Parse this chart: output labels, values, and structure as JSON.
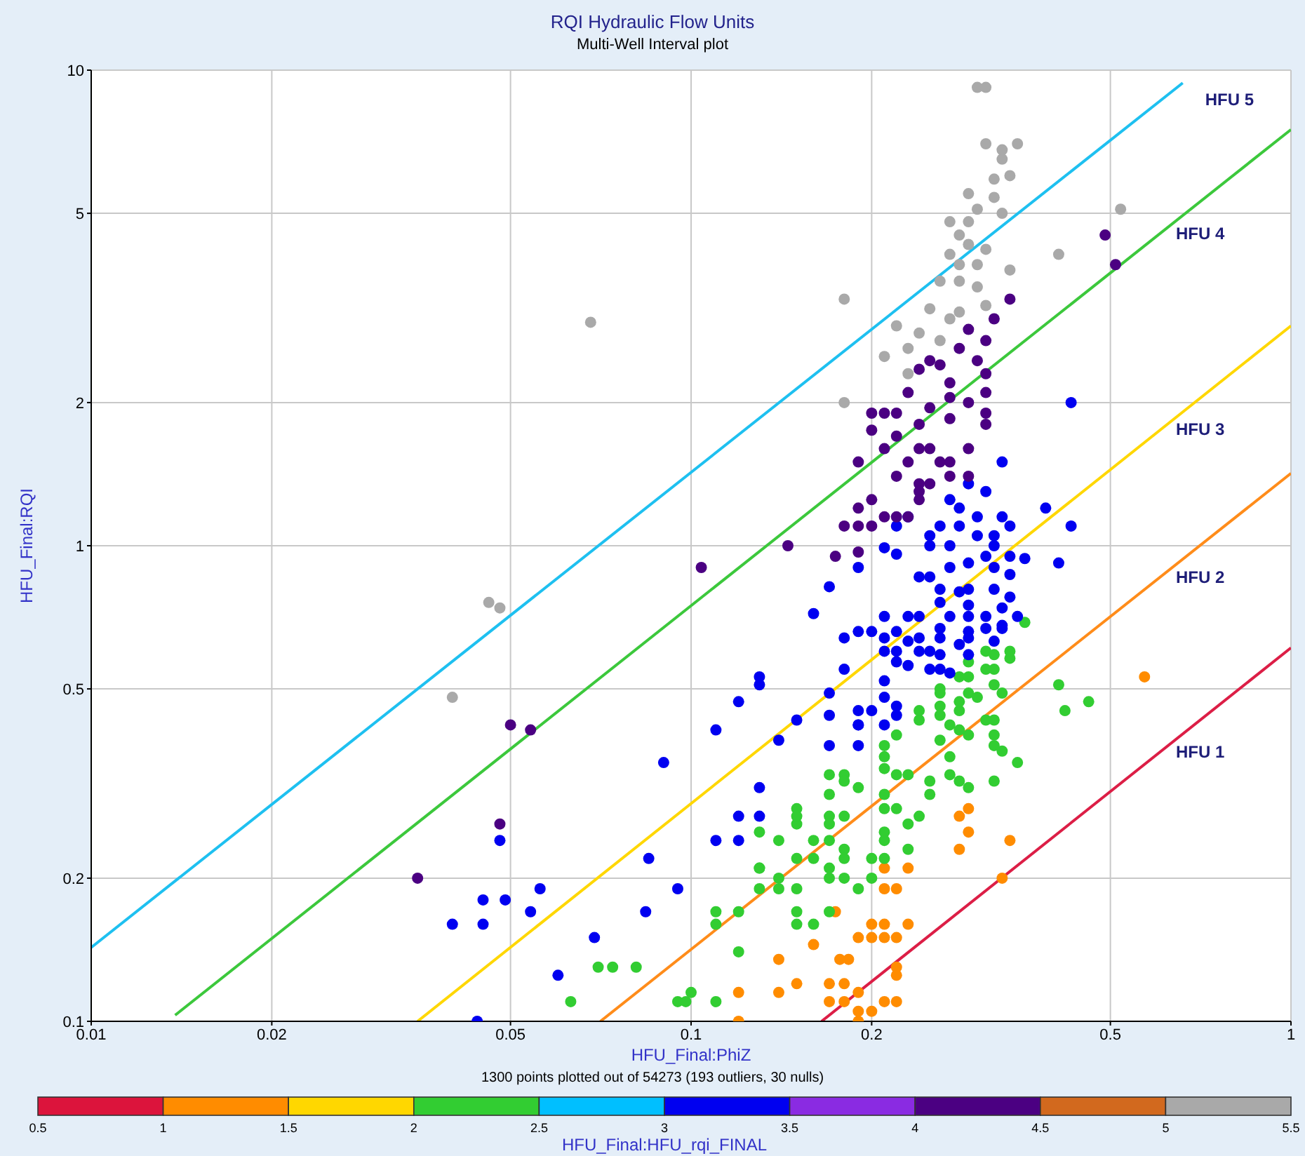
{
  "chart_data": {
    "type": "scatter",
    "title": "RQI Hydraulic Flow Units",
    "subtitle": "Multi-Well Interval plot",
    "xlabel": "HFU_Final:PhiZ",
    "ylabel": "HFU_Final:RQI",
    "clabel": "HFU_Final:HFU_rqi_FINAL",
    "annotations": [
      "1300 points plotted out of 54273 (193 outliers, 30 nulls)"
    ],
    "log": "xy",
    "grid": true,
    "xlim": [
      0.01,
      1
    ],
    "xticks": [
      0.01,
      0.02,
      0.05,
      0.1,
      0.2,
      0.5,
      1
    ],
    "ylim": [
      0.1,
      10
    ],
    "yticks": [
      0.1,
      0.2,
      0.5,
      1,
      2,
      5,
      10
    ],
    "clim": [
      0.5,
      5.5
    ],
    "cticks": [
      0.5,
      1,
      1.5,
      2,
      2.5,
      3,
      3.5,
      4,
      4.5,
      5,
      5.5
    ],
    "colors": [
      "#dc143c",
      "#ff8c00",
      "#ffd700",
      "#32cd32",
      "#00bfff",
      "#0000f0",
      "#8a2be2",
      "#4b0082",
      "#d2691e",
      "#a9a9a9"
    ],
    "series": [
      {
        "marker": "circle",
        "x": [
          0.28,
          0.29,
          0.29,
          0.28,
          0.34,
          0.33,
          0.21,
          0.23,
          0.21,
          0.22,
          0.174,
          0.2,
          0.21,
          0.23,
          0.19,
          0.2,
          0.21,
          0.22,
          0.16,
          0.14,
          0.177,
          0.183,
          0.22,
          0.22,
          0.17,
          0.18,
          0.19,
          0.15,
          0.14,
          0.12,
          0.22,
          0.21,
          0.17,
          0.18,
          0.2,
          0.19,
          0.12,
          0.19,
          0.57
        ],
        "values": [
          0.27,
          0.28,
          0.25,
          0.23,
          0.24,
          0.2,
          0.21,
          0.21,
          0.19,
          0.19,
          0.17,
          0.16,
          0.16,
          0.16,
          0.15,
          0.15,
          0.15,
          0.15,
          0.145,
          0.135,
          0.135,
          0.135,
          0.13,
          0.125,
          0.12,
          0.12,
          0.115,
          0.12,
          0.115,
          0.115,
          0.11,
          0.11,
          0.11,
          0.11,
          0.105,
          0.105,
          0.1,
          0.1,
          0.53
        ],
        "cvalues": [
          1.25,
          1.25,
          1.25,
          1.25,
          1.25,
          1.25,
          1.25,
          1.25,
          1.25,
          1.25,
          1.25,
          1.25,
          1.25,
          1.25,
          1.25,
          1.25,
          1.25,
          1.25,
          1.25,
          1.25,
          1.25,
          1.25,
          1.25,
          1.25,
          1.25,
          1.25,
          1.25,
          1.25,
          1.25,
          1.25,
          1.25,
          1.25,
          1.25,
          1.25,
          1.25,
          1.25,
          1.25,
          1.25,
          1.25
        ]
      },
      {
        "marker": "circle",
        "x": [
          0.063,
          0.07,
          0.074,
          0.081,
          0.095,
          0.098,
          0.1,
          0.11,
          0.12,
          0.11,
          0.12,
          0.11,
          0.13,
          0.14,
          0.14,
          0.15,
          0.13,
          0.13,
          0.15,
          0.13,
          0.14,
          0.15,
          0.15,
          0.15,
          0.17,
          0.16,
          0.17,
          0.16,
          0.17,
          0.15,
          0.15,
          0.16,
          0.17,
          0.17,
          0.17,
          0.17,
          0.17,
          0.18,
          0.19,
          0.2,
          0.18,
          0.18,
          0.18,
          0.2,
          0.21,
          0.21,
          0.21,
          0.22,
          0.23,
          0.24,
          0.23,
          0.19,
          0.21,
          0.21,
          0.18,
          0.18,
          0.21,
          0.21,
          0.21,
          0.22,
          0.22,
          0.23,
          0.25,
          0.25,
          0.27,
          0.28,
          0.29,
          0.32,
          0.26,
          0.27,
          0.24,
          0.24,
          0.26,
          0.26,
          0.26,
          0.28,
          0.28,
          0.29,
          0.3,
          0.27,
          0.28,
          0.29,
          0.31,
          0.32,
          0.32,
          0.33,
          0.32,
          0.35,
          0.33,
          0.32,
          0.26,
          0.28,
          0.29,
          0.29,
          0.31,
          0.32,
          0.31,
          0.32,
          0.34,
          0.34,
          0.36,
          0.41,
          0.42,
          0.46
        ],
        "values": [
          0.11,
          0.13,
          0.13,
          0.13,
          0.11,
          0.11,
          0.115,
          0.11,
          0.14,
          0.16,
          0.17,
          0.17,
          0.19,
          0.2,
          0.19,
          0.19,
          0.21,
          0.21,
          0.22,
          0.25,
          0.24,
          0.26,
          0.28,
          0.27,
          0.27,
          0.24,
          0.24,
          0.22,
          0.21,
          0.17,
          0.16,
          0.16,
          0.17,
          0.33,
          0.3,
          0.26,
          0.2,
          0.2,
          0.19,
          0.2,
          0.27,
          0.23,
          0.22,
          0.22,
          0.22,
          0.25,
          0.24,
          0.28,
          0.26,
          0.27,
          0.23,
          0.31,
          0.3,
          0.28,
          0.33,
          0.32,
          0.34,
          0.36,
          0.38,
          0.4,
          0.33,
          0.33,
          0.32,
          0.3,
          0.33,
          0.32,
          0.31,
          0.32,
          0.39,
          0.36,
          0.43,
          0.45,
          0.49,
          0.46,
          0.44,
          0.45,
          0.47,
          0.49,
          0.48,
          0.42,
          0.41,
          0.4,
          0.43,
          0.43,
          0.4,
          0.37,
          0.38,
          0.35,
          0.49,
          0.51,
          0.5,
          0.53,
          0.53,
          0.57,
          0.6,
          0.59,
          0.55,
          0.55,
          0.58,
          0.6,
          0.69,
          0.51,
          0.45,
          0.47
        ],
        "cvalues": [
          2.25,
          2.25,
          2.25,
          2.25,
          2.25,
          2.25,
          2.25,
          2.25,
          2.25,
          2.25,
          2.25,
          2.25,
          2.25,
          2.25,
          2.25,
          2.25,
          2.25,
          2.25,
          2.25,
          2.25,
          2.25,
          2.25,
          2.25,
          2.25,
          2.25,
          2.25,
          2.25,
          2.25,
          2.25,
          2.25,
          2.25,
          2.25,
          2.25,
          2.25,
          2.25,
          2.25,
          2.25,
          2.25,
          2.25,
          2.25,
          2.25,
          2.25,
          2.25,
          2.25,
          2.25,
          2.25,
          2.25,
          2.25,
          2.25,
          2.25,
          2.25,
          2.25,
          2.25,
          2.25,
          2.25,
          2.25,
          2.25,
          2.25,
          2.25,
          2.25,
          2.25,
          2.25,
          2.25,
          2.25,
          2.25,
          2.25,
          2.25,
          2.25,
          2.25,
          2.25,
          2.25,
          2.25,
          2.25,
          2.25,
          2.25,
          2.25,
          2.25,
          2.25,
          2.25,
          2.25,
          2.25,
          2.25,
          2.25,
          2.25,
          2.25,
          2.25,
          2.25,
          2.25,
          2.25,
          2.25,
          2.25,
          2.25,
          2.25,
          2.25,
          2.25,
          2.25,
          2.25,
          2.25,
          2.25,
          2.25,
          2.25,
          2.25,
          2.25,
          2.25
        ]
      },
      {
        "marker": "circle",
        "x": [
          0.17,
          0.16,
          0.13,
          0.13,
          0.12,
          0.17,
          0.17,
          0.15,
          0.11,
          0.14,
          0.17,
          0.09,
          0.13,
          0.12,
          0.13,
          0.11,
          0.12,
          0.085,
          0.048,
          0.095,
          0.084,
          0.069,
          0.06,
          0.044,
          0.045,
          0.04,
          0.045,
          0.049,
          0.054,
          0.056,
          0.18,
          0.19,
          0.2,
          0.21,
          0.23,
          0.21,
          0.21,
          0.22,
          0.21,
          0.22,
          0.18,
          0.19,
          0.19,
          0.19,
          0.2,
          0.21,
          0.22,
          0.21,
          0.22,
          0.19,
          0.24,
          0.25,
          0.25,
          0.26,
          0.28,
          0.29,
          0.29,
          0.27,
          0.35,
          0.33,
          0.43,
          0.33,
          0.29,
          0.31,
          0.39,
          0.43,
          0.27,
          0.28,
          0.3,
          0.33,
          0.23,
          0.22,
          0.25,
          0.26,
          0.28,
          0.3,
          0.32,
          0.34,
          0.21,
          0.22,
          0.25,
          0.27,
          0.31,
          0.32,
          0.34,
          0.36,
          0.41,
          0.19,
          0.24,
          0.25,
          0.27,
          0.29,
          0.32,
          0.34,
          0.26,
          0.28,
          0.29,
          0.32,
          0.34,
          0.26,
          0.29,
          0.33,
          0.24,
          0.27,
          0.29,
          0.31,
          0.22,
          0.26,
          0.29,
          0.31,
          0.33,
          0.23,
          0.26,
          0.32,
          0.24,
          0.23,
          0.26
        ],
        "values": [
          0.82,
          0.72,
          0.53,
          0.51,
          0.47,
          0.49,
          0.44,
          0.43,
          0.41,
          0.39,
          0.38,
          0.35,
          0.31,
          0.27,
          0.27,
          0.24,
          0.24,
          0.22,
          0.24,
          0.19,
          0.17,
          0.15,
          0.125,
          0.1,
          0.18,
          0.16,
          0.16,
          0.18,
          0.17,
          0.19,
          0.64,
          0.66,
          0.66,
          0.71,
          0.71,
          0.64,
          0.6,
          0.57,
          0.52,
          0.6,
          0.55,
          0.42,
          0.42,
          0.45,
          0.45,
          0.48,
          0.46,
          0.42,
          0.44,
          0.38,
          0.64,
          0.6,
          0.55,
          0.59,
          0.62,
          0.64,
          0.59,
          0.54,
          0.71,
          0.67,
          2.0,
          1.5,
          1.35,
          1.3,
          1.2,
          1.1,
          1.25,
          1.2,
          1.15,
          1.15,
          1.15,
          1.1,
          1.05,
          1.1,
          1.1,
          1.05,
          1.05,
          1.1,
          0.99,
          0.96,
          1.0,
          1.0,
          0.95,
          1.0,
          0.95,
          0.94,
          0.92,
          0.9,
          0.86,
          0.86,
          0.9,
          0.92,
          0.9,
          0.87,
          0.81,
          0.8,
          0.81,
          0.81,
          0.78,
          0.76,
          0.75,
          0.74,
          0.71,
          0.71,
          0.71,
          0.71,
          0.66,
          0.67,
          0.66,
          0.67,
          0.68,
          0.63,
          0.64,
          0.63,
          0.6,
          0.56,
          0.55
        ],
        "cvalues": [
          3.25,
          3.25,
          3.25,
          3.25,
          3.25,
          3.25,
          3.25,
          3.25,
          3.25,
          3.25,
          3.25,
          3.25,
          3.25,
          3.25,
          3.25,
          3.25,
          3.25,
          3.25,
          3.25,
          3.25,
          3.25,
          3.25,
          3.25,
          3.25,
          3.25,
          3.25,
          3.25,
          3.25,
          3.25,
          3.25,
          3.25,
          3.25,
          3.25,
          3.25,
          3.25,
          3.25,
          3.25,
          3.25,
          3.25,
          3.25,
          3.25,
          3.25,
          3.25,
          3.25,
          3.25,
          3.25,
          3.25,
          3.25,
          3.25,
          3.25,
          3.25,
          3.25,
          3.25,
          3.25,
          3.25,
          3.25,
          3.25,
          3.25,
          3.25,
          3.25,
          3.25,
          3.25,
          3.25,
          3.25,
          3.25,
          3.25,
          3.25,
          3.25,
          3.25,
          3.25,
          3.25,
          3.25,
          3.25,
          3.25,
          3.25,
          3.25,
          3.25,
          3.25,
          3.25,
          3.25,
          3.25,
          3.25,
          3.25,
          3.25,
          3.25,
          3.25,
          3.25,
          3.25,
          3.25,
          3.25,
          3.25,
          3.25,
          3.25,
          3.25,
          3.25,
          3.25,
          3.25,
          3.25,
          3.25,
          3.25,
          3.25,
          3.25,
          3.25,
          3.25,
          3.25,
          3.25,
          3.25,
          3.25,
          3.25,
          3.25,
          3.25,
          3.25,
          3.25,
          3.25,
          3.25,
          3.25,
          3.25
        ]
      },
      {
        "marker": "circle",
        "x": [
          0.035,
          0.048,
          0.05,
          0.054,
          0.104,
          0.145,
          0.174,
          0.49,
          0.51,
          0.34,
          0.32,
          0.29,
          0.31,
          0.28,
          0.3,
          0.25,
          0.24,
          0.26,
          0.31,
          0.27,
          0.23,
          0.27,
          0.31,
          0.29,
          0.25,
          0.2,
          0.21,
          0.22,
          0.27,
          0.31,
          0.24,
          0.31,
          0.2,
          0.22,
          0.24,
          0.25,
          0.29,
          0.21,
          0.19,
          0.23,
          0.26,
          0.27,
          0.22,
          0.24,
          0.25,
          0.27,
          0.29,
          0.24,
          0.2,
          0.24,
          0.19,
          0.21,
          0.22,
          0.23,
          0.18,
          0.19,
          0.2,
          0.19
        ],
        "values": [
          0.2,
          0.26,
          0.42,
          0.41,
          0.9,
          1.0,
          0.95,
          4.5,
          3.9,
          3.3,
          3.0,
          2.85,
          2.7,
          2.6,
          2.45,
          2.45,
          2.35,
          2.4,
          2.3,
          2.2,
          2.1,
          2.05,
          2.1,
          2.0,
          1.95,
          1.9,
          1.9,
          1.9,
          1.85,
          1.9,
          1.8,
          1.8,
          1.75,
          1.7,
          1.6,
          1.6,
          1.6,
          1.6,
          1.5,
          1.5,
          1.5,
          1.5,
          1.4,
          1.35,
          1.35,
          1.4,
          1.4,
          1.3,
          1.25,
          1.25,
          1.2,
          1.15,
          1.15,
          1.15,
          1.1,
          1.1,
          1.1,
          0.97
        ],
        "cvalues": [
          4.25,
          4.25,
          4.25,
          4.25,
          4.25,
          4.25,
          4.25,
          4.25,
          4.25,
          4.25,
          4.25,
          4.25,
          4.25,
          4.25,
          4.25,
          4.25,
          4.25,
          4.25,
          4.25,
          4.25,
          4.25,
          4.25,
          4.25,
          4.25,
          4.25,
          4.25,
          4.25,
          4.25,
          4.25,
          4.25,
          4.25,
          4.25,
          4.25,
          4.25,
          4.25,
          4.25,
          4.25,
          4.25,
          4.25,
          4.25,
          4.25,
          4.25,
          4.25,
          4.25,
          4.25,
          4.25,
          4.25,
          4.25,
          4.25,
          4.25,
          4.25,
          4.25,
          4.25,
          4.25,
          4.25,
          4.25,
          4.25,
          4.25
        ]
      },
      {
        "marker": "circle",
        "x": [
          0.3,
          0.31,
          0.31,
          0.33,
          0.35,
          0.33,
          0.32,
          0.34,
          0.29,
          0.32,
          0.3,
          0.33,
          0.27,
          0.29,
          0.28,
          0.29,
          0.31,
          0.27,
          0.41,
          0.52,
          0.28,
          0.3,
          0.34,
          0.26,
          0.28,
          0.3,
          0.18,
          0.25,
          0.28,
          0.31,
          0.27,
          0.22,
          0.24,
          0.26,
          0.23,
          0.21,
          0.23,
          0.18,
          0.068,
          0.04,
          0.046,
          0.048
        ],
        "values": [
          9.2,
          9.2,
          7.0,
          6.8,
          7.0,
          6.5,
          5.9,
          6.0,
          5.5,
          5.4,
          5.1,
          5.0,
          4.8,
          4.8,
          4.5,
          4.3,
          4.2,
          4.1,
          4.1,
          5.1,
          3.9,
          3.9,
          3.8,
          3.6,
          3.6,
          3.5,
          3.3,
          3.15,
          3.1,
          3.2,
          3.0,
          2.9,
          2.8,
          2.7,
          2.6,
          2.5,
          2.3,
          2.0,
          2.95,
          0.48,
          0.76,
          0.74
        ],
        "cvalues": [
          5.25,
          5.25,
          5.25,
          5.25,
          5.25,
          5.25,
          5.25,
          5.25,
          5.25,
          5.25,
          5.25,
          5.25,
          5.25,
          5.25,
          5.25,
          5.25,
          5.25,
          5.25,
          5.25,
          5.25,
          5.25,
          5.25,
          5.25,
          5.25,
          5.25,
          5.25,
          5.25,
          5.25,
          5.25,
          5.25,
          5.25,
          5.25,
          5.25,
          5.25,
          5.25,
          5.25,
          5.25,
          5.25,
          5.25,
          5.25,
          5.25,
          5.25
        ]
      },
      {
        "type": "line",
        "name": "HFU 1",
        "color": "#dc1e46",
        "x": [
          0.165,
          1
        ],
        "values": [
          0.1,
          0.61
        ]
      },
      {
        "type": "line",
        "name": "HFU 2",
        "color": "#ff8c1a",
        "x": [
          0.0706,
          1
        ],
        "values": [
          0.1,
          1.42
        ]
      },
      {
        "type": "line",
        "name": "HFU 3",
        "color": "#ffd700",
        "x": [
          0.035,
          1
        ],
        "values": [
          0.1,
          2.9
        ]
      },
      {
        "type": "line",
        "name": "HFU 4",
        "color": "#3cc83c",
        "x": [
          0.0138,
          1
        ],
        "values": [
          0.103,
          7.5
        ]
      },
      {
        "type": "line",
        "name": "HFU 5",
        "color": "#1ec0f0",
        "x": [
          0.01,
          0.66
        ],
        "values": [
          0.143,
          9.4
        ]
      }
    ]
  }
}
